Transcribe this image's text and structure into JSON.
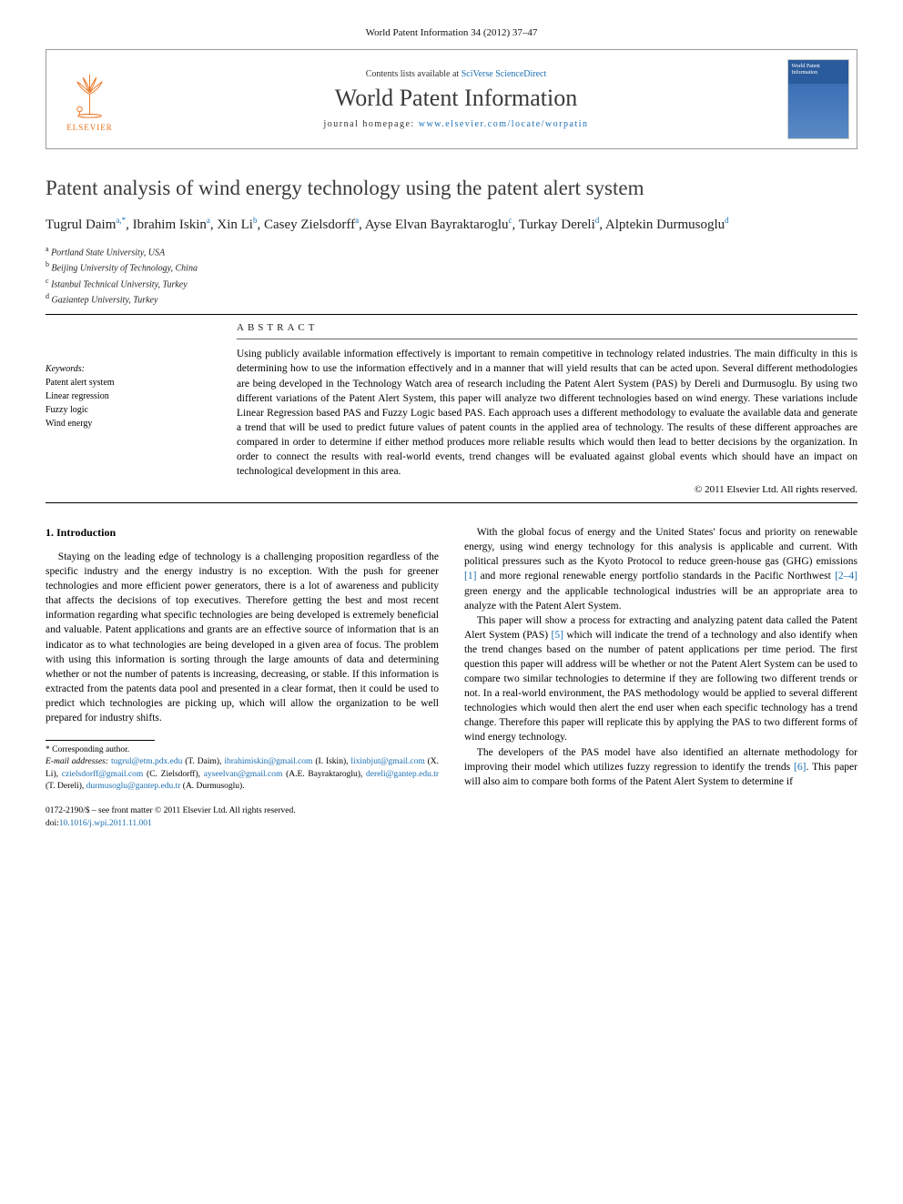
{
  "journal_ref": "World Patent Information 34 (2012) 37–47",
  "header": {
    "publisher": "ELSEVIER",
    "contents_prefix": "Contents lists available at ",
    "contents_link": "SciVerse ScienceDirect",
    "journal_title": "World Patent Information",
    "homepage_prefix": "journal homepage: ",
    "homepage_url": "www.elsevier.com/locate/worpatin",
    "cover_title": "World Patent Information"
  },
  "article": {
    "title": "Patent analysis of wind energy technology using the patent alert system",
    "authors_html": "Tugrul Daim<sup>a,*</sup>, Ibrahim Iskin<sup>a</sup>, Xin Li<sup>b</sup>, Casey Zielsdorff<sup>a</sup>, Ayse Elvan Bayraktaroglu<sup>c</sup>, Turkay Dereli<sup>d</sup>, Alptekin Durmusoglu<sup>d</sup>",
    "affiliations": [
      "<sup>a</sup> Portland State University, USA",
      "<sup>b</sup> Beijing University of Technology, China",
      "<sup>c</sup> Istanbul Technical University, Turkey",
      "<sup>d</sup> Gaziantep University, Turkey"
    ]
  },
  "keywords": {
    "label": "Keywords:",
    "items": [
      "Patent alert system",
      "Linear regression",
      "Fuzzy logic",
      "Wind energy"
    ]
  },
  "abstract": {
    "heading": "ABSTRACT",
    "text": "Using publicly available information effectively is important to remain competitive in technology related industries. The main difficulty in this is determining how to use the information effectively and in a manner that will yield results that can be acted upon. Several different methodologies are being developed in the Technology Watch area of research including the Patent Alert System (PAS) by Dereli and Durmusoglu. By using two different variations of the Patent Alert System, this paper will analyze two different technologies based on wind energy. These variations include Linear Regression based PAS and Fuzzy Logic based PAS. Each approach uses a different methodology to evaluate the available data and generate a trend that will be used to predict future values of patent counts in the applied area of technology. The results of these different approaches are compared in order to determine if either method produces more reliable results which would then lead to better decisions by the organization. In order to connect the results with real-world events, trend changes will be evaluated against global events which should have an impact on technological development in this area.",
    "copyright": "© 2011 Elsevier Ltd. All rights reserved."
  },
  "body": {
    "section1_heading": "1. Introduction",
    "para1": "Staying on the leading edge of technology is a challenging proposition regardless of the specific industry and the energy industry is no exception. With the push for greener technologies and more efficient power generators, there is a lot of awareness and publicity that affects the decisions of top executives. Therefore getting the best and most recent information regarding what specific technologies are being developed is extremely beneficial and valuable. Patent applications and grants are an effective source of information that is an indicator as to what technologies are being developed in a given area of focus. The problem with using this information is sorting through the large amounts of data and determining whether or not the number of patents is increasing, decreasing, or stable. If this information is extracted from the patents data pool and presented in a clear format, then it could be used to predict which technologies are picking up, which will allow the organization to be well prepared for industry shifts.",
    "para2_pre": "With the global focus of energy and the United States' focus and priority on renewable energy, using wind energy technology for this analysis is applicable and current. With political pressures such as the Kyoto Protocol to reduce green-house gas (GHG) emissions ",
    "ref1": "[1]",
    "para2_mid": " and more regional renewable energy portfolio standards in the Pacific Northwest ",
    "ref2": "[2–4]",
    "para2_post": " green energy and the applicable technological industries will be an appropriate area to analyze with the Patent Alert System.",
    "para3_pre": "This paper will show a process for extracting and analyzing patent data called the Patent Alert System (PAS) ",
    "ref5": "[5]",
    "para3_post": " which will indicate the trend of a technology and also identify when the trend changes based on the number of patent applications per time period. The first question this paper will address will be whether or not the Patent Alert System can be used to compare two similar technologies to determine if they are following two different trends or not. In a real-world environment, the PAS methodology would be applied to several different technologies which would then alert the end user when each specific technology has a trend change. Therefore this paper will replicate this by applying the PAS to two different forms of wind energy technology.",
    "para4_pre": "The developers of the PAS model have also identified an alternate methodology for improving their model which utilizes fuzzy regression to identify the trends ",
    "ref6": "[6]",
    "para4_post": ". This paper will also aim to compare both forms of the Patent Alert System to determine if"
  },
  "footer": {
    "corresponding": "* Corresponding author.",
    "emails_label": "E-mail addresses: ",
    "emails": "tugrul@etm.pdx.edu (T. Daim), ibrahimiskin@gmail.com (I. Iskin), lixinbjut@gmail.com (X. Li), czielsdorff@gmail.com (C. Zielsdorff), ayseelvan@gmail.com (A.E. Bayraktaroglu), dereli@gantep.edu.tr (T. Dereli), durmusoglu@gantep.edu.tr (A. Durmusoglu).",
    "issn_line": "0172-2190/$ – see front matter © 2011 Elsevier Ltd. All rights reserved.",
    "doi_label": "doi:",
    "doi": "10.1016/j.wpi.2011.11.001"
  },
  "colors": {
    "link": "#1a6fb3",
    "elsevier_orange": "#e9711c",
    "text": "#000000",
    "heading_gray": "#3a3a3a"
  }
}
